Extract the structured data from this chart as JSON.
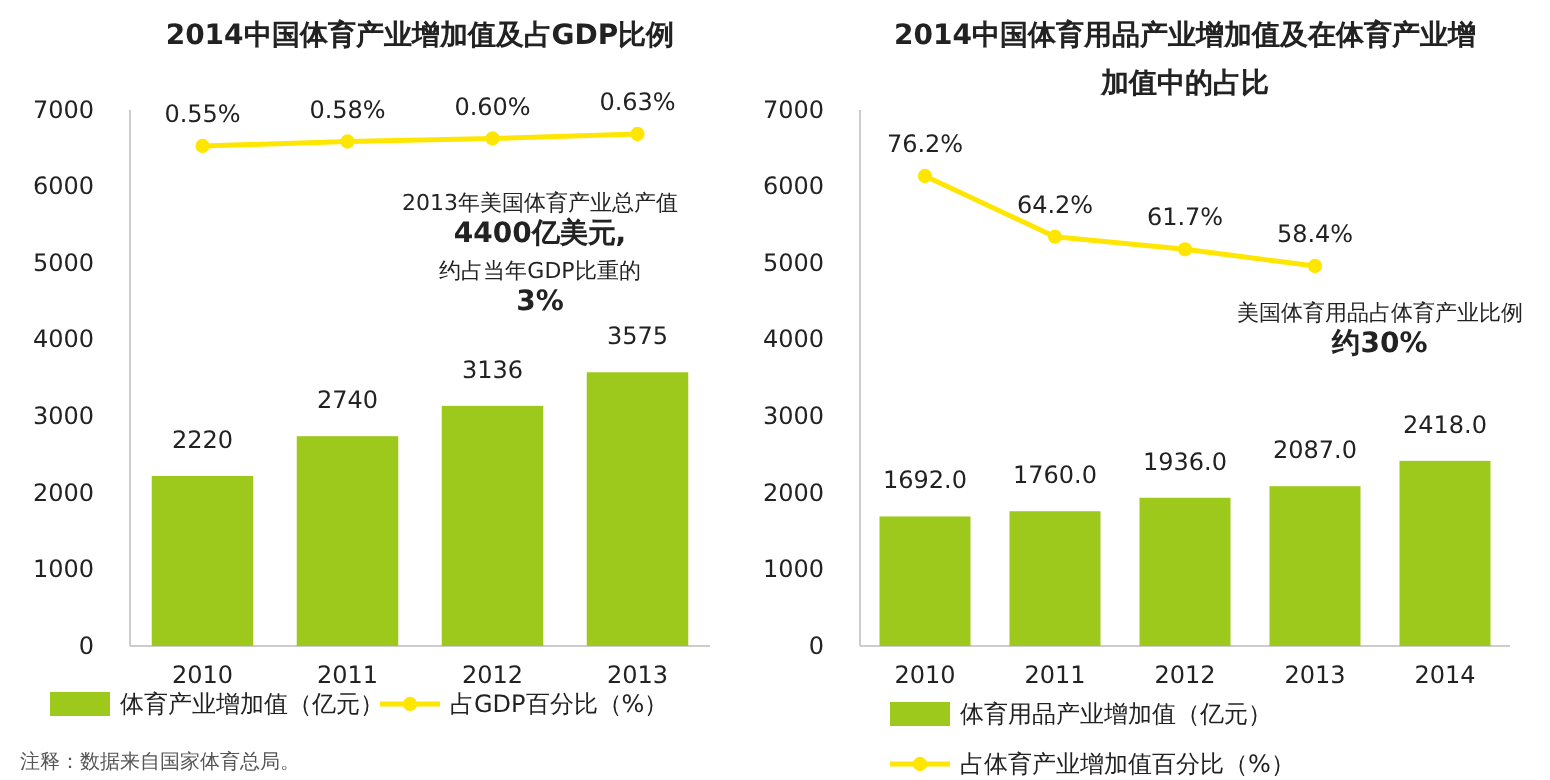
{
  "chart_data": [
    {
      "type": "bar",
      "title": "2014中国体育产业增加值及占GDP比例",
      "categories": [
        "2010",
        "2011",
        "2012",
        "2013"
      ],
      "ylim": [
        0,
        7000
      ],
      "yticks": [
        0,
        1000,
        2000,
        3000,
        4000,
        5000,
        6000,
        7000
      ],
      "legend": "bottom",
      "marker": "circle",
      "series": [
        {
          "name": "体育产业增加值（亿元）",
          "color": "#9dc81c",
          "values": [
            2220,
            2740,
            3136,
            3575
          ],
          "value_labels": [
            "2220",
            "2740",
            "3136",
            "3575"
          ]
        },
        {
          "name": "占GDP百分比（%）",
          "type": "line",
          "axis": "y2",
          "color": "#ffe600",
          "values": [
            0.55,
            0.58,
            0.6,
            0.63
          ],
          "value_labels": [
            "0.55%",
            "0.58%",
            "0.60%",
            "0.63%"
          ]
        }
      ],
      "annotations": [
        "注释：数据来自国家体育总局。",
        "2013年美国体育产业总产值",
        "4400亿美元,",
        "约占当年GDP比重的",
        "3%"
      ]
    },
    {
      "type": "bar",
      "title": "2014中国体育用品产业增加值及在体育产业增加值中的占比",
      "categories": [
        "2010",
        "2011",
        "2012",
        "2013",
        "2014"
      ],
      "ylim": [
        0,
        7000
      ],
      "yticks": [
        0,
        1000,
        2000,
        3000,
        4000,
        5000,
        6000,
        7000
      ],
      "legend": "bottom",
      "marker": "circle",
      "series": [
        {
          "name": "体育用品产业增加值（亿元）",
          "color": "#9dc81c",
          "values": [
            1692.0,
            1760.0,
            1936.0,
            2087.0,
            2418.0
          ],
          "value_labels": [
            "1692.0",
            "1760.0",
            "1936.0",
            "2087.0",
            "2418.0"
          ]
        },
        {
          "name": "占体育产业增加值百分比（%）",
          "type": "line",
          "axis": "y2",
          "color": "#ffe600",
          "values": [
            76.2,
            64.2,
            61.7,
            58.4,
            null
          ],
          "value_labels": [
            "76.2%",
            "64.2%",
            "61.7%",
            "58.4%",
            null
          ]
        }
      ],
      "annotations": [
        "美国体育用品占体育产业比例",
        "约30%"
      ]
    }
  ]
}
